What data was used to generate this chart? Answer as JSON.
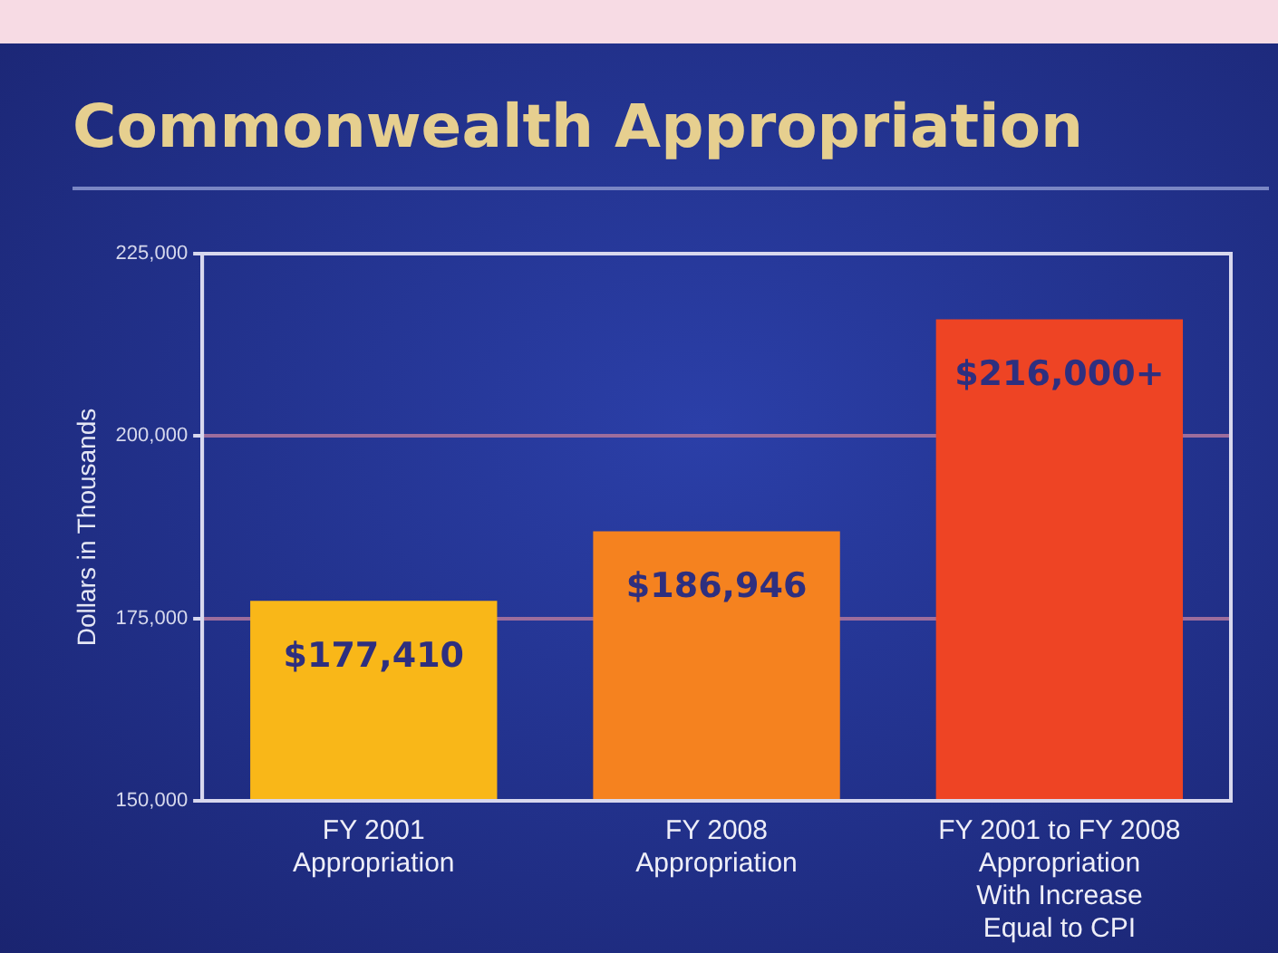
{
  "chart_data": {
    "type": "bar",
    "title": "Commonwealth Appropriation",
    "ylabel": "Dollars in Thousands",
    "categories": [
      "FY 2001\nAppropriation",
      "FY 2008\nAppropriation",
      "FY 2001 to FY 2008\nAppropriation\nWith Increase\nEqual to CPI"
    ],
    "values": [
      177410,
      186946,
      216000
    ],
    "colors": [
      "#f9b718",
      "#f5821f",
      "#ee4424"
    ],
    "value_labels": [
      "$177,410",
      "$186,946",
      "$216,000+"
    ],
    "ylim": [
      150000,
      225000
    ],
    "yticks": [
      {
        "value": 150000,
        "label": "150,000"
      },
      {
        "value": 175000,
        "label": "175,000"
      },
      {
        "value": 200000,
        "label": "200,000"
      },
      {
        "value": 225000,
        "label": "225,000"
      }
    ],
    "grid": "y",
    "legend": false
  }
}
